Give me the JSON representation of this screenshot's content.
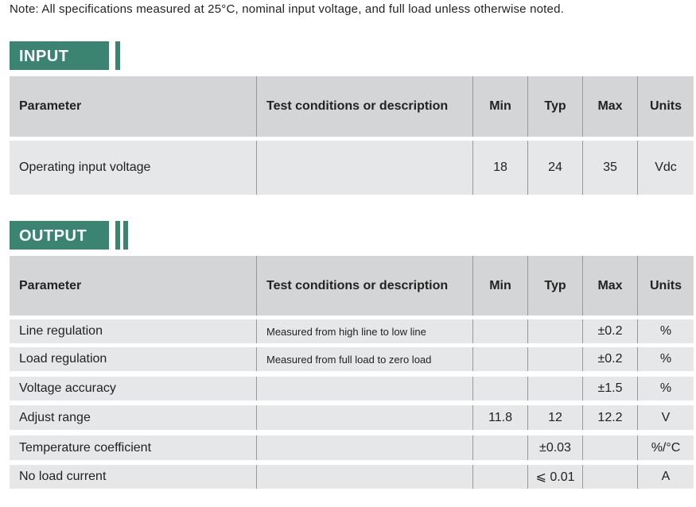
{
  "note": "Note: All specifications measured at 25°C, nominal input voltage, and full load unless otherwise noted.",
  "accent_color": "#3b8472",
  "columns": [
    "Parameter",
    "Test conditions or description",
    "Min",
    "Typ",
    "Max",
    "Units"
  ],
  "input": {
    "title": "INPUT",
    "rows": [
      [
        "Operating  input  voltage",
        "",
        "18",
        "24",
        "35",
        "Vdc"
      ]
    ]
  },
  "output": {
    "title": "OUTPUT",
    "rows": [
      [
        "Line regulation",
        "Measured from high line to low line",
        "",
        "",
        "±0.2",
        "%"
      ],
      [
        "Load regulation",
        "Measured from full load to zero load",
        "",
        "",
        "±0.2",
        "%"
      ],
      [
        "Voltage accuracy",
        "",
        "",
        "",
        "±1.5",
        "%"
      ],
      [
        "Adjust range",
        "",
        "11.8",
        "12",
        "12.2",
        "V"
      ],
      [
        "Temperature coefficient",
        "",
        "",
        "±0.03",
        "",
        "%/°C"
      ],
      [
        "No load current",
        "",
        "",
        "⩽ 0.01",
        "",
        "A"
      ]
    ]
  }
}
